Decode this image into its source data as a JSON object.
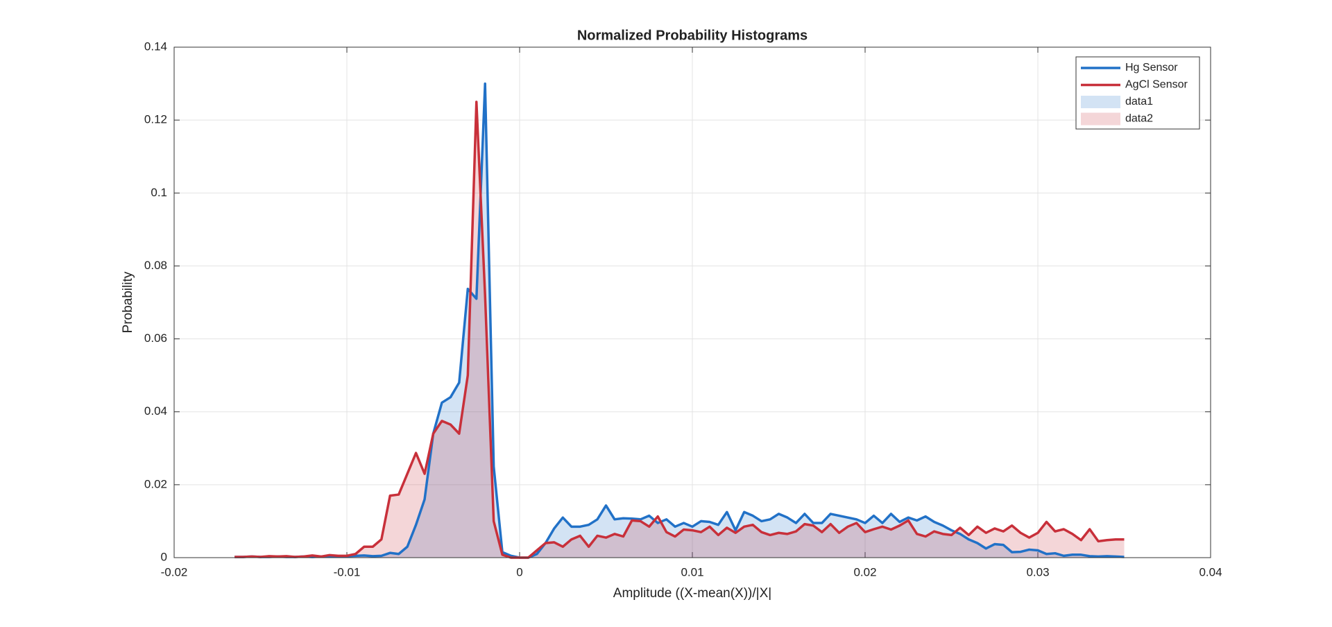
{
  "chart_data": {
    "type": "line",
    "title": "Normalized Probability Histograms",
    "x_label": "Amplitude ((X-mean(X))/|X|",
    "y_label": "Probability",
    "x": [
      -0.0165,
      -0.016,
      -0.0155,
      -0.015,
      -0.0145,
      -0.014,
      -0.0135,
      -0.013,
      -0.0125,
      -0.012,
      -0.0115,
      -0.011,
      -0.0105,
      -0.01,
      -0.0095,
      -0.009,
      -0.0085,
      -0.008,
      -0.0075,
      -0.007,
      -0.0065,
      -0.006,
      -0.0055,
      -0.005,
      -0.0045,
      -0.004,
      -0.0035,
      -0.003,
      -0.0025,
      -0.002,
      -0.0015,
      -0.001,
      -0.0005,
      0,
      0.0005,
      0.001,
      0.0015,
      0.002,
      0.0025,
      0.003,
      0.0035,
      0.004,
      0.0045,
      0.005,
      0.0055,
      0.006,
      0.0065,
      0.007,
      0.0075,
      0.008,
      0.0085,
      0.009,
      0.0095,
      0.01,
      0.0105,
      0.011,
      0.0115,
      0.012,
      0.0125,
      0.013,
      0.0135,
      0.014,
      0.0145,
      0.015,
      0.0155,
      0.016,
      0.0165,
      0.017,
      0.0175,
      0.018,
      0.0185,
      0.019,
      0.0195,
      0.02,
      0.0205,
      0.021,
      0.0215,
      0.022,
      0.0225,
      0.023,
      0.0235,
      0.024,
      0.0245,
      0.025,
      0.0255,
      0.026,
      0.0265,
      0.027,
      0.0275,
      0.028,
      0.0285,
      0.029,
      0.0295,
      0.03,
      0.0305,
      0.031,
      0.0315,
      0.032,
      0.0325,
      0.033,
      0.0335,
      0.034,
      0.0345,
      0.035
    ],
    "series": [
      {
        "name": "Hg Sensor",
        "color": "#2171c7",
        "area": {
          "name": "data1"
        },
        "values": [
          0.0002,
          0.0002,
          0.0003,
          0.0002,
          0.0002,
          0.0003,
          0.0002,
          0.0002,
          0.0003,
          0.0002,
          0.0003,
          0.0003,
          0.0004,
          0.0004,
          0.0005,
          0.0006,
          0.0004,
          0.0005,
          0.0013,
          0.001,
          0.003,
          0.009,
          0.016,
          0.034,
          0.0425,
          0.044,
          0.048,
          0.0737,
          0.071,
          0.13,
          0.025,
          0.0015,
          0.0005,
          0,
          0,
          0.001,
          0.004,
          0.008,
          0.011,
          0.0085,
          0.0085,
          0.009,
          0.0105,
          0.0143,
          0.0105,
          0.0108,
          0.0107,
          0.0105,
          0.0115,
          0.0095,
          0.0105,
          0.0085,
          0.0095,
          0.0085,
          0.01,
          0.0098,
          0.009,
          0.0125,
          0.0075,
          0.0125,
          0.0115,
          0.01,
          0.0105,
          0.012,
          0.011,
          0.0095,
          0.012,
          0.0095,
          0.0095,
          0.012,
          0.0115,
          0.011,
          0.0105,
          0.0095,
          0.0115,
          0.0095,
          0.012,
          0.0098,
          0.011,
          0.0102,
          0.0113,
          0.0098,
          0.0088,
          0.0075,
          0.0065,
          0.005,
          0.004,
          0.0025,
          0.0037,
          0.0035,
          0.0015,
          0.0016,
          0.0022,
          0.002,
          0.001,
          0.0012,
          0.0005,
          0.0008,
          0.0008,
          0.0004,
          0.0003,
          0.0004,
          0.0003,
          0.0002
        ]
      },
      {
        "name": "AgCl Sensor",
        "color": "#c8303a",
        "area": {
          "name": "data2"
        },
        "values": [
          0.0002,
          0.0002,
          0.0003,
          0.0002,
          0.0004,
          0.0003,
          0.0004,
          0.0002,
          0.0003,
          0.0006,
          0.0003,
          0.0007,
          0.0005,
          0.0005,
          0.001,
          0.003,
          0.003,
          0.005,
          0.017,
          0.0173,
          0.023,
          0.0287,
          0.023,
          0.034,
          0.0375,
          0.0365,
          0.034,
          0.05,
          0.125,
          0.072,
          0.01,
          0.0008,
          0,
          0,
          0,
          0.002,
          0.004,
          0.0042,
          0.003,
          0.005,
          0.006,
          0.003,
          0.006,
          0.0055,
          0.0065,
          0.0058,
          0.0102,
          0.01,
          0.0085,
          0.0113,
          0.007,
          0.0058,
          0.0077,
          0.0075,
          0.007,
          0.0085,
          0.0062,
          0.0082,
          0.0068,
          0.0085,
          0.009,
          0.007,
          0.0062,
          0.0068,
          0.0065,
          0.0072,
          0.0092,
          0.0088,
          0.007,
          0.0092,
          0.0068,
          0.0085,
          0.0095,
          0.007,
          0.0078,
          0.0085,
          0.0077,
          0.0088,
          0.0102,
          0.0065,
          0.0058,
          0.0072,
          0.0065,
          0.0062,
          0.0082,
          0.0062,
          0.0085,
          0.0068,
          0.008,
          0.0072,
          0.0088,
          0.0068,
          0.0055,
          0.0068,
          0.0098,
          0.0072,
          0.0078,
          0.0065,
          0.0048,
          0.0078,
          0.0045,
          0.0048,
          0.005,
          0.005
        ]
      }
    ],
    "xlim": [
      -0.02,
      0.04
    ],
    "xticks": [
      -0.02,
      -0.01,
      0,
      0.01,
      0.02,
      0.03,
      0.04
    ],
    "ylim": [
      0,
      0.14
    ],
    "yticks": [
      0,
      0.02,
      0.04,
      0.06,
      0.08,
      0.1,
      0.12,
      0.14
    ],
    "grid": true,
    "legend": "northeast"
  }
}
